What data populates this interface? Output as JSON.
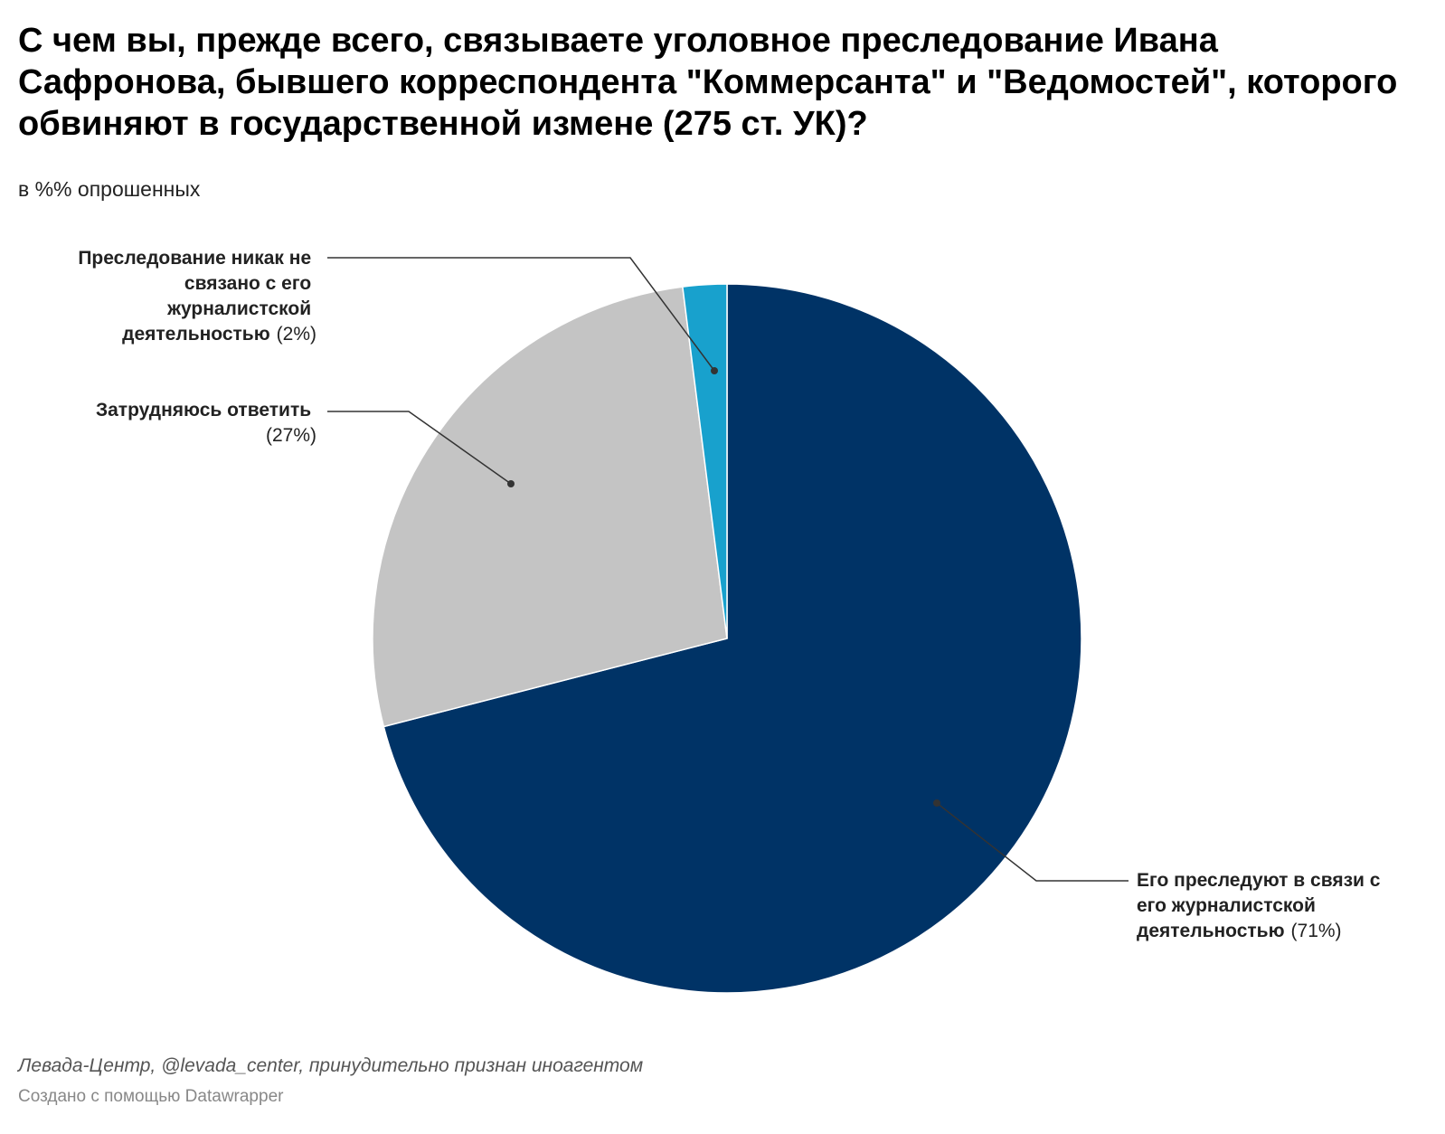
{
  "header": {
    "title": "С чем вы, прежде всего, связываете уголовное преследование Ивана Сафронова, бывшего корреспондента \"Коммерсанта\" и \"Ведомостей\", которого обвиняют в государственной измене (275 ст. УК)?",
    "subtitle": "в %% опрошенных"
  },
  "chart_data": {
    "type": "pie",
    "title": "С чем вы, прежде всего, связываете уголовное преследование Ивана Сафронова, бывшего корреспондента \"Коммерсанта\" и \"Ведомостей\", которого обвиняют в государственной измене (275 ст. УК)?",
    "subtitle": "в %% опрошенных",
    "unit": "%",
    "slices": [
      {
        "label_lines": [
          "Его преследуют в связи с",
          "его журналистской",
          "деятельностью"
        ],
        "label": "Его преследуют в связи с его журналистской деятельностью",
        "value": 71,
        "value_text": "(71%)",
        "color": "#003366"
      },
      {
        "label_lines": [
          "Затрудняюсь ответить"
        ],
        "label": "Затрудняюсь ответить",
        "value": 27,
        "value_text": "(27%)",
        "color": "#c4c4c4"
      },
      {
        "label_lines": [
          "Преследование никак не",
          "связано с его",
          "журналистской",
          "деятельностью"
        ],
        "label": "Преследование никак не связано с его журналистской деятельностью",
        "value": 2,
        "value_text": "(2%)",
        "color": "#18a1cd"
      }
    ]
  },
  "footer": {
    "source": "Левада-Центр, @levada_center, принудительно признан иноагентом",
    "credit": "Создано с помощью Datawrapper"
  }
}
